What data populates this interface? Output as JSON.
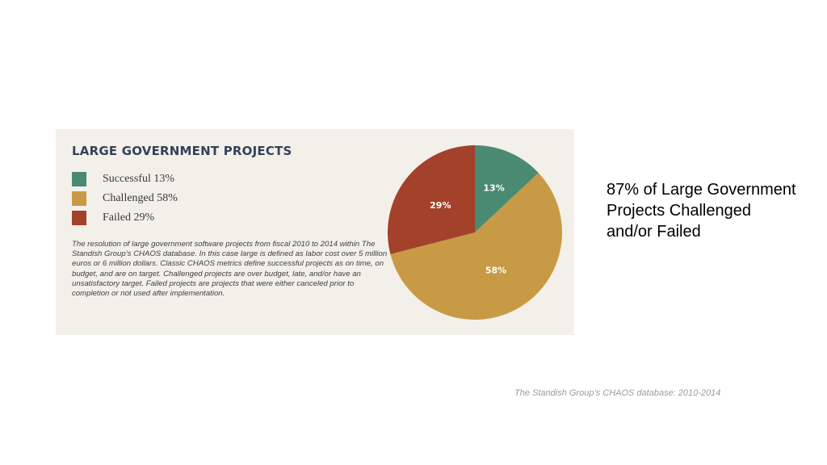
{
  "headline": "87% of Large Government Projects Challenged and/or Failed",
  "source": "The Standish Group’s CHAOS database: 2010-2014",
  "infographic": {
    "description": "The resolution of large government software projects from fiscal 2010 to 2014 within The Standish Group’s CHAOS database. In this case large is defined as labor cost over 5 million euros or 6 million dollars. Classic CHAOS metrics define successful projects as on time, on budget, and are on target. Challenged projects are over budget, late, and/or have an unsatisfactory target. Failed projects are projects that were either canceled prior to completion or not used after implementation."
  },
  "chart_data": {
    "type": "pie",
    "title": "LARGE GOVERNMENT PROJECTS",
    "legend_placement": "left",
    "slices": [
      {
        "legend_label": "Successful 13%",
        "value": 13,
        "data_label": "13%",
        "color": "#4a8a72"
      },
      {
        "legend_label": "Challenged 58%",
        "value": 58,
        "data_label": "58%",
        "color": "#c99a45"
      },
      {
        "legend_label": "Failed 29%",
        "value": 29,
        "data_label": "29%",
        "color": "#a3412b"
      }
    ]
  }
}
